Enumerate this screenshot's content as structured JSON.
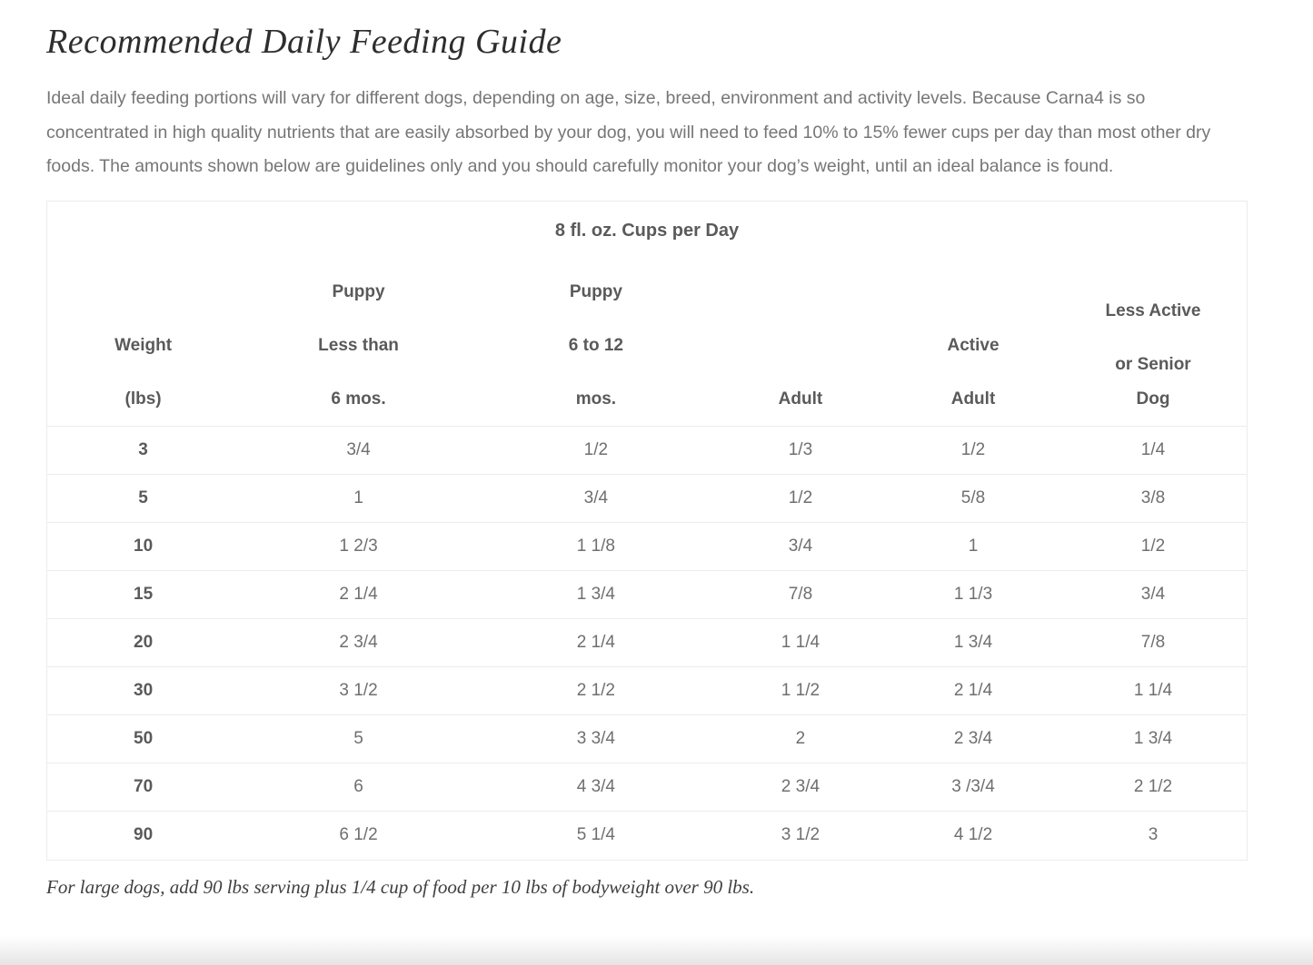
{
  "page": {
    "title": "Recommended Daily Feeding Guide",
    "intro": "Ideal daily feeding portions will vary for different dogs, depending on age, size, breed, environment and activity levels. Because Carna4 is so concentrated in high quality nutrients that are easily absorbed by your dog, you will need to feed 10% to 15% fewer cups per day than most other dry foods. The amounts shown below are guidelines only and you should carefully monitor your dog’s weight, until an ideal balance is found.",
    "footnote": "For large dogs, add 90 lbs serving plus 1/4 cup of food per 10 lbs of bodyweight over 90 lbs."
  },
  "table": {
    "caption": "8 fl. oz. Cups per Day",
    "columns": [
      {
        "lines": [
          "Weight",
          "(lbs)"
        ]
      },
      {
        "lines": [
          "Puppy",
          "Less than",
          "6 mos."
        ]
      },
      {
        "lines": [
          "Puppy",
          "6 to 12",
          "mos."
        ]
      },
      {
        "lines": [
          "Adult"
        ]
      },
      {
        "lines": [
          "Active",
          "Adult"
        ]
      },
      {
        "lines": [
          "Less Active",
          "or Senior",
          "Dog"
        ],
        "tight_last": true
      }
    ],
    "rows": [
      {
        "weight": "3",
        "values": [
          "3/4",
          "1/2",
          "1/3",
          "1/2",
          "1/4"
        ]
      },
      {
        "weight": "5",
        "values": [
          "1",
          "3/4",
          "1/2",
          "5/8",
          "3/8"
        ]
      },
      {
        "weight": "10",
        "values": [
          "1 2/3",
          "1 1/8",
          "3/4",
          "1",
          "1/2"
        ]
      },
      {
        "weight": "15",
        "values": [
          "2 1/4",
          "1 3/4",
          "7/8",
          "1 1/3",
          "3/4"
        ]
      },
      {
        "weight": "20",
        "values": [
          "2 3/4",
          "2 1/4",
          "1 1/4",
          "1 3/4",
          "7/8"
        ]
      },
      {
        "weight": "30",
        "values": [
          "3 1/2",
          "2 1/2",
          "1 1/2",
          "2 1/4",
          "1 1/4"
        ]
      },
      {
        "weight": "50",
        "values": [
          "5",
          "3 3/4",
          "2",
          "2 3/4",
          "1 3/4"
        ]
      },
      {
        "weight": "70",
        "values": [
          "6",
          "4 3/4",
          "2 3/4",
          "3 /3/4",
          "2 1/2"
        ]
      },
      {
        "weight": "90",
        "values": [
          "6 1/2",
          "5 1/4",
          "3 1/2",
          "4 1/2",
          "3"
        ]
      }
    ]
  },
  "colors": {
    "title": "#2e2e2e",
    "body_text": "#767676",
    "header_text": "#5a5a5a",
    "cell_text": "#6f6f6f",
    "footnote_text": "#3f3f3f",
    "border": "#ececec"
  }
}
